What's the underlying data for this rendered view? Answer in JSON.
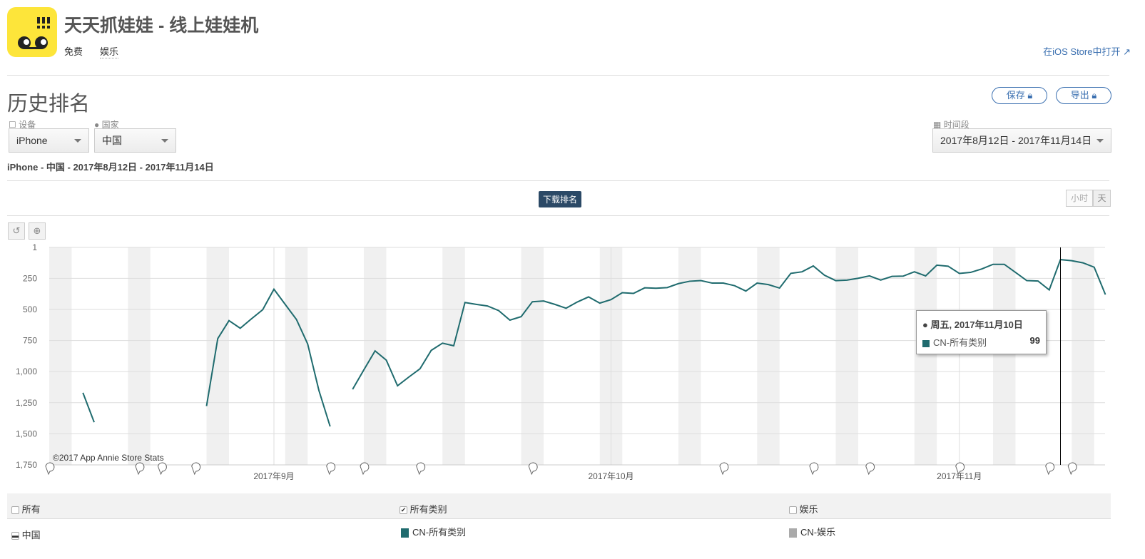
{
  "app": {
    "title": "天天抓娃娃 - 线上娃娃机",
    "price": "免费",
    "category": "娱乐",
    "store_link": "在iOS Store中打开"
  },
  "page": {
    "title": "历史排名",
    "save_label": "保存",
    "export_label": "导出"
  },
  "filters": {
    "device_label": "设备",
    "device_value": "iPhone",
    "country_label": "国家",
    "country_value": "中国",
    "period_label": "时间段",
    "period_value": "2017年8月12日 - 2017年11月14日",
    "summary": "iPhone - 中国 - 2017年8月12日 - 2017年11月14日"
  },
  "chart_tabs": {
    "active": "下载排名",
    "hour": "小时",
    "day": "天"
  },
  "tooltip": {
    "date": "周五, 2017年11月10日",
    "series": "CN-所有类别",
    "value": "99"
  },
  "legend": {
    "header": [
      "所有",
      "所有类别",
      "娱乐"
    ],
    "row_label": "中国",
    "series": [
      {
        "name": "CN-所有类别",
        "color": "#1f6b6e"
      },
      {
        "name": "CN-娱乐",
        "color": "#aaaaaa"
      }
    ]
  },
  "colors": {
    "line": "#1f6b6e",
    "weekend": "#f0f0f0",
    "accent": "#3a6fb0"
  },
  "chart_data": {
    "type": "line",
    "title": "下载排名",
    "credit": "©2017 App Annie Store Stats",
    "start_date": "2017-08-12",
    "ylim": [
      1,
      1750
    ],
    "y_inverted": true,
    "yticks": [
      1,
      250,
      500,
      750,
      1000,
      1250,
      1500,
      1750
    ],
    "ytick_labels": [
      "1",
      "250",
      "500",
      "750",
      "1,000",
      "1,250",
      "1,500",
      "1,750"
    ],
    "xtick_labels": [
      {
        "date": "2017-09-01",
        "label": "2017年9月"
      },
      {
        "date": "2017-10-01",
        "label": "2017年10月"
      },
      {
        "date": "2017-11-01",
        "label": "2017年11月"
      }
    ],
    "series": [
      {
        "name": "CN-所有类别",
        "values": [
          null,
          null,
          null,
          1170,
          1407,
          null,
          null,
          null,
          null,
          null,
          null,
          null,
          null,
          null,
          1277,
          734,
          590,
          651,
          575,
          502,
          337,
          459,
          580,
          777,
          1151,
          1441,
          null,
          1142,
          986,
          833,
          908,
          1114,
          1044,
          977,
          829,
          771,
          792,
          444,
          459,
          472,
          509,
          586,
          558,
          438,
          432,
          459,
          490,
          440,
          399,
          449,
          421,
          365,
          371,
          326,
          329,
          324,
          292,
          273,
          268,
          288,
          288,
          309,
          352,
          288,
          300,
          328,
          210,
          197,
          150,
          225,
          268,
          264,
          249,
          230,
          264,
          234,
          232,
          197,
          230,
          144,
          152,
          210,
          202,
          174,
          137,
          137,
          202,
          268,
          271,
          343,
          99,
          108,
          125,
          160,
          380
        ]
      }
    ],
    "highlight_date": "2017-11-10",
    "event_dates": [
      "2017-08-12",
      "2017-08-20",
      "2017-08-22",
      "2017-08-25",
      "2017-09-06",
      "2017-09-09",
      "2017-09-14",
      "2017-09-24",
      "2017-10-11",
      "2017-10-19",
      "2017-10-24",
      "2017-11-01",
      "2017-11-09",
      "2017-11-11"
    ]
  }
}
